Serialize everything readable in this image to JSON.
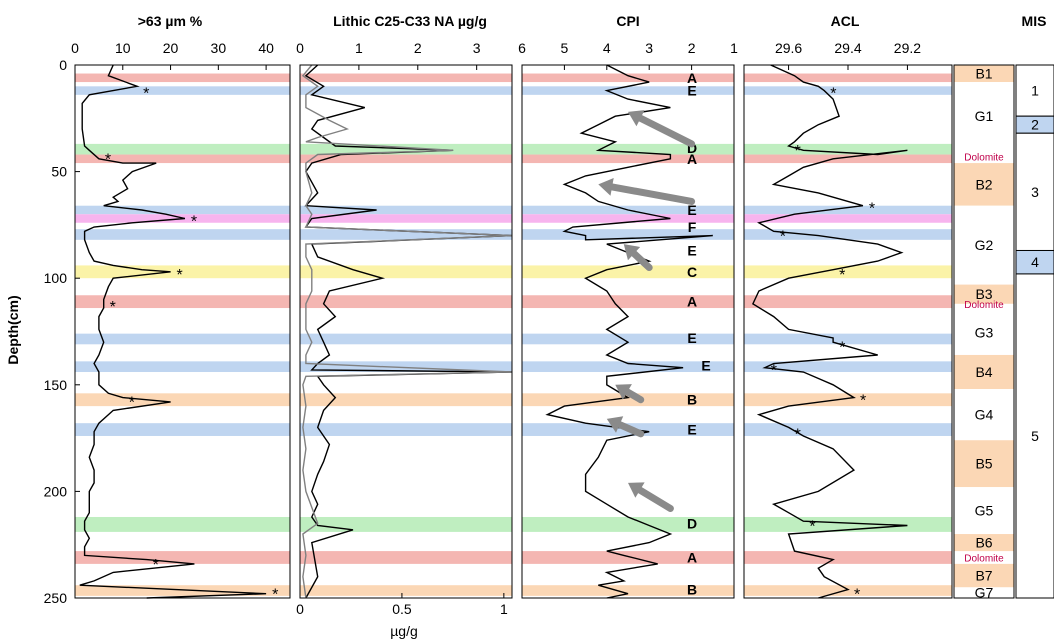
{
  "chart_data": [
    {
      "type": "line",
      "title": ">63 µm %",
      "ylabel": "Depth(cm)",
      "xlim": [
        0,
        45
      ],
      "ylim": [
        0,
        250
      ],
      "xticks": [
        "0",
        "10",
        "20",
        "30",
        "40"
      ],
      "yticks": [
        "0",
        "50",
        "100",
        "150",
        "200",
        "250"
      ],
      "series": [
        {
          "x": [
            8,
            7,
            13,
            3,
            1.5,
            1.5,
            2,
            3,
            5,
            10,
            17,
            12,
            10,
            11,
            8,
            9,
            6,
            14,
            19,
            23,
            12,
            4,
            2,
            2,
            3,
            4,
            8,
            14,
            20,
            8,
            7,
            6,
            6,
            5,
            5,
            6,
            5,
            4,
            5,
            5,
            7,
            10,
            20,
            8,
            5,
            4,
            4,
            3,
            4,
            4,
            3,
            3,
            3,
            2,
            2,
            3,
            2,
            2,
            15,
            25,
            8,
            4,
            1,
            40,
            15
          ],
          "y": [
            0,
            5,
            10,
            14,
            18,
            30,
            38,
            40,
            44,
            46,
            46,
            50,
            54,
            58,
            62,
            64,
            66,
            68,
            70,
            72,
            74,
            76,
            78,
            82,
            88,
            92,
            94,
            96,
            97,
            100,
            104,
            110,
            114,
            118,
            124,
            130,
            136,
            140,
            144,
            150,
            154,
            156,
            158,
            162,
            168,
            172,
            178,
            184,
            190,
            196,
            200,
            206,
            210,
            214,
            218,
            222,
            226,
            230,
            232,
            234,
            238,
            242,
            244,
            248,
            250
          ]
        }
      ],
      "peak_marks": [
        12,
        43,
        72,
        97,
        112,
        157,
        233,
        247
      ]
    },
    {
      "type": "line",
      "title": "Lithic C25-C33 NA µg/g",
      "xlim": [
        0,
        3.6
      ],
      "xlim_bottom": [
        0,
        1.04
      ],
      "ylim": [
        0,
        250
      ],
      "xticks": [
        "0",
        "1",
        "2",
        "3"
      ],
      "xticks_bottom": [
        "0",
        "0.5",
        "1"
      ],
      "xlabel_bottom": "µg/g",
      "series": [
        {
          "x": [
            0.3,
            0.1,
            0.4,
            0.2,
            1.1,
            0.3,
            0.2,
            0.4,
            0.6,
            2.6,
            0.7,
            0.2,
            0.1,
            0.3,
            0.1,
            1.3,
            0.2,
            0.1,
            3.6,
            0.2,
            0.3,
            0.9,
            1.4,
            0.5,
            0.4,
            0.6,
            0.3,
            0.4,
            0.5,
            0.3,
            0.2,
            3.6,
            0.3,
            0.4,
            0.6,
            0.4,
            0.3,
            0.5,
            0.4,
            0.3,
            0.2,
            0.3,
            0.2,
            0.3,
            0.9,
            0.2,
            0.3,
            0.1
          ],
          "y": [
            0,
            5,
            10,
            14,
            20,
            26,
            30,
            34,
            38,
            40,
            42,
            46,
            50,
            60,
            66,
            68,
            72,
            76,
            80,
            84,
            90,
            96,
            100,
            106,
            112,
            118,
            124,
            130,
            136,
            140,
            143,
            144,
            146,
            150,
            156,
            162,
            170,
            178,
            186,
            192,
            200,
            206,
            212,
            216,
            218,
            224,
            240,
            250
          ]
        },
        {
          "x": [
            0.2,
            0.05,
            0.3,
            0.1,
            0.1,
            0.5,
            0.8,
            0.3,
            0.1,
            2.6,
            0.3,
            0.1,
            0.1,
            0.2,
            0.1,
            0.2,
            0.1,
            3.6,
            0.1,
            0.1,
            0.2,
            0.2,
            0.1,
            0.1,
            0.2,
            0.1,
            0.1,
            3.6,
            0.1,
            0.05,
            0.1,
            0.05,
            0.1,
            0.05,
            0.1,
            0.3,
            0.05,
            0.1,
            0.05,
            0.1
          ],
          "y": [
            0,
            5,
            10,
            14,
            20,
            26,
            30,
            34,
            36,
            40,
            42,
            46,
            50,
            60,
            66,
            70,
            76,
            80,
            84,
            90,
            96,
            106,
            112,
            124,
            130,
            136,
            140,
            144,
            146,
            150,
            160,
            170,
            180,
            190,
            200,
            215,
            220,
            230,
            240,
            250
          ]
        }
      ]
    },
    {
      "type": "line",
      "title": "CPI",
      "xlim": [
        6,
        1
      ],
      "ylim": [
        0,
        250
      ],
      "xticks": [
        "6",
        "5",
        "4",
        "3",
        "2",
        "1"
      ],
      "series": [
        {
          "x": [
            4,
            3.5,
            3,
            4,
            3.5,
            2.5,
            3.8,
            4.2,
            4.6,
            3.8,
            4.2,
            2.5,
            2.5,
            3.5,
            4.5,
            5,
            4.5,
            4.2,
            3.5,
            2.5,
            4.8,
            5,
            4.5,
            4.5,
            1.5,
            4,
            3.5,
            3,
            4,
            4.5,
            4,
            3.8,
            3.5,
            4,
            3.5,
            4,
            3.5,
            2.2,
            4,
            4,
            3.5,
            5,
            5.4,
            4.5,
            3,
            4,
            4.2,
            4.5,
            4.5,
            4,
            3.5,
            3,
            2.5,
            3,
            4,
            3.6,
            2.8,
            4,
            3.6,
            4.2,
            3.5,
            4
          ],
          "y": [
            0,
            5,
            8,
            12,
            16,
            20,
            24,
            28,
            32,
            36,
            40,
            42,
            44,
            48,
            52,
            56,
            60,
            64,
            68,
            72,
            76,
            78,
            80,
            82,
            80,
            84,
            88,
            92,
            96,
            100,
            106,
            112,
            118,
            124,
            130,
            136,
            140,
            142,
            146,
            150,
            156,
            160,
            164,
            168,
            172,
            176,
            184,
            192,
            200,
            206,
            212,
            216,
            220,
            224,
            228,
            230,
            234,
            238,
            242,
            244,
            248,
            250
          ]
        }
      ],
      "arrows": [
        {
          "from": [
            2,
            37
          ],
          "to": [
            3.5,
            22
          ]
        },
        {
          "from": [
            2,
            64
          ],
          "to": [
            4.2,
            56
          ]
        },
        {
          "from": [
            3,
            95
          ],
          "to": [
            3.6,
            84
          ]
        },
        {
          "from": [
            3.2,
            157
          ],
          "to": [
            3.8,
            150
          ]
        },
        {
          "from": [
            3.2,
            173
          ],
          "to": [
            4,
            166
          ]
        },
        {
          "from": [
            2.5,
            208
          ],
          "to": [
            3.5,
            196
          ]
        }
      ]
    },
    {
      "type": "line",
      "title": "ACL",
      "xlim": [
        29.75,
        29.05
      ],
      "ylim": [
        0,
        250
      ],
      "xticks": [
        "29.6",
        "29.4",
        "29.2"
      ],
      "series": [
        {
          "x": [
            29.66,
            29.58,
            29.55,
            29.5,
            29.48,
            29.45,
            29.44,
            29.43,
            29.5,
            29.55,
            29.58,
            29.6,
            29.55,
            29.3,
            29.2,
            29.45,
            29.55,
            29.6,
            29.65,
            29.5,
            29.4,
            29.35,
            29.58,
            29.7,
            29.65,
            29.5,
            29.4,
            29.3,
            29.22,
            29.3,
            29.45,
            29.6,
            29.7,
            29.72,
            29.65,
            29.6,
            29.45,
            29.45,
            29.3,
            29.65,
            29.68,
            29.55,
            29.45,
            29.38,
            29.6,
            29.7,
            29.6,
            29.55,
            29.45,
            29.38,
            29.5,
            29.65,
            29.6,
            29.55,
            29.2,
            29.6,
            29.58,
            29.45,
            29.5,
            29.48,
            29.4,
            29.5
          ],
          "y": [
            0,
            5,
            8,
            10,
            12,
            16,
            20,
            24,
            28,
            32,
            36,
            38,
            40,
            42,
            40,
            44,
            48,
            52,
            56,
            60,
            64,
            66,
            70,
            74,
            78,
            80,
            82,
            84,
            88,
            92,
            96,
            100,
            106,
            112,
            118,
            124,
            128,
            130,
            136,
            140,
            142,
            144,
            150,
            156,
            160,
            164,
            170,
            174,
            180,
            190,
            200,
            206,
            210,
            214,
            216,
            220,
            228,
            232,
            236,
            240,
            246,
            250
          ]
        }
      ],
      "peak_marks": [
        12,
        39,
        66,
        79,
        97,
        131,
        142,
        156,
        172,
        215,
        247
      ]
    }
  ],
  "bands": [
    {
      "y0": 4,
      "y1": 8,
      "color": "#f4b6b2"
    },
    {
      "y0": 10,
      "y1": 14,
      "color": "#bfd5f0"
    },
    {
      "y0": 37,
      "y1": 42,
      "color": "#bfeec0"
    },
    {
      "y0": 42,
      "y1": 46,
      "color": "#f4b6b2"
    },
    {
      "y0": 66,
      "y1": 70,
      "color": "#bfd5f0"
    },
    {
      "y0": 70,
      "y1": 74,
      "color": "#f7b4ee"
    },
    {
      "y0": 77,
      "y1": 82,
      "color": "#bfd5f0"
    },
    {
      "y0": 94,
      "y1": 100,
      "color": "#fbf3a8"
    },
    {
      "y0": 108,
      "y1": 114,
      "color": "#f4b6b2"
    },
    {
      "y0": 126,
      "y1": 131,
      "color": "#bfd5f0"
    },
    {
      "y0": 139,
      "y1": 144,
      "color": "#bfd5f0"
    },
    {
      "y0": 154,
      "y1": 160,
      "color": "#fbd7b5"
    },
    {
      "y0": 168,
      "y1": 174,
      "color": "#bfd5f0"
    },
    {
      "y0": 212,
      "y1": 219,
      "color": "#bfeec0"
    },
    {
      "y0": 228,
      "y1": 234,
      "color": "#f4b6b2"
    },
    {
      "y0": 244,
      "y1": 249,
      "color": "#fbd7b5"
    }
  ],
  "cpi_labels": [
    {
      "text": "A",
      "y": 6
    },
    {
      "text": "E",
      "y": 12
    },
    {
      "text": "D",
      "y": 39
    },
    {
      "text": "A",
      "y": 44
    },
    {
      "text": "E",
      "y": 68
    },
    {
      "text": "F",
      "y": 76
    },
    {
      "text": "E",
      "y": 87
    },
    {
      "text": "C",
      "y": 97
    },
    {
      "text": "A",
      "y": 111
    },
    {
      "text": "E",
      "y": 128
    },
    {
      "text": "E",
      "y": 141,
      "right": true
    },
    {
      "text": "B",
      "y": 157
    },
    {
      "text": "E",
      "y": 171
    },
    {
      "text": "D",
      "y": 215
    },
    {
      "text": "A",
      "y": 231
    },
    {
      "text": "B",
      "y": 246
    }
  ],
  "stratigraphy": {
    "units": [
      {
        "label": "B1",
        "y0": 0,
        "y1": 8,
        "color": "#fbd7b5"
      },
      {
        "label": "G1",
        "y0": 8,
        "y1": 40,
        "color": "#ffffff"
      },
      {
        "label": "Dolomite",
        "y0": 40,
        "y1": 46,
        "color": "#ffffff",
        "small": true
      },
      {
        "label": "B2",
        "y0": 46,
        "y1": 66,
        "color": "#fbd7b5"
      },
      {
        "label": "G2",
        "y0": 66,
        "y1": 103,
        "color": "#ffffff"
      },
      {
        "label": "B3",
        "y0": 103,
        "y1": 112,
        "color": "#fbd7b5"
      },
      {
        "label": "Dolomite",
        "y0": 109,
        "y1": 115,
        "color": "#fbd7b5",
        "small": true
      },
      {
        "label": "G3",
        "y0": 115,
        "y1": 136,
        "color": "#ffffff"
      },
      {
        "label": "B4",
        "y0": 136,
        "y1": 152,
        "color": "#fbd7b5"
      },
      {
        "label": "G4",
        "y0": 152,
        "y1": 176,
        "color": "#ffffff"
      },
      {
        "label": "B5",
        "y0": 176,
        "y1": 198,
        "color": "#fbd7b5"
      },
      {
        "label": "G5",
        "y0": 198,
        "y1": 220,
        "color": "#ffffff"
      },
      {
        "label": "B6",
        "y0": 220,
        "y1": 228,
        "color": "#fbd7b5"
      },
      {
        "label": "Dolomite",
        "y0": 228,
        "y1": 234,
        "color": "#fbd7b5",
        "small": true
      },
      {
        "label": "B7",
        "y0": 234,
        "y1": 245,
        "color": "#fbd7b5"
      },
      {
        "label": "G7",
        "y0": 245,
        "y1": 250,
        "color": "#ffffff"
      }
    ]
  },
  "mis": {
    "title": "MIS",
    "stages": [
      {
        "label": "1",
        "y0": 0,
        "y1": 24,
        "color": "#ffffff"
      },
      {
        "label": "2",
        "y0": 24,
        "y1": 32,
        "color": "#bfd5f0"
      },
      {
        "label": "3",
        "y0": 32,
        "y1": 87,
        "color": "#ffffff"
      },
      {
        "label": "4",
        "y0": 87,
        "y1": 98,
        "color": "#bfd5f0"
      },
      {
        "label": "5",
        "y0": 98,
        "y1": 250,
        "color": "#ffffff"
      }
    ]
  },
  "colors": {
    "line": "#000000",
    "grey_line": "#808080",
    "arrow": "#8a8a8a",
    "dolomite_text": "#c0004a"
  }
}
